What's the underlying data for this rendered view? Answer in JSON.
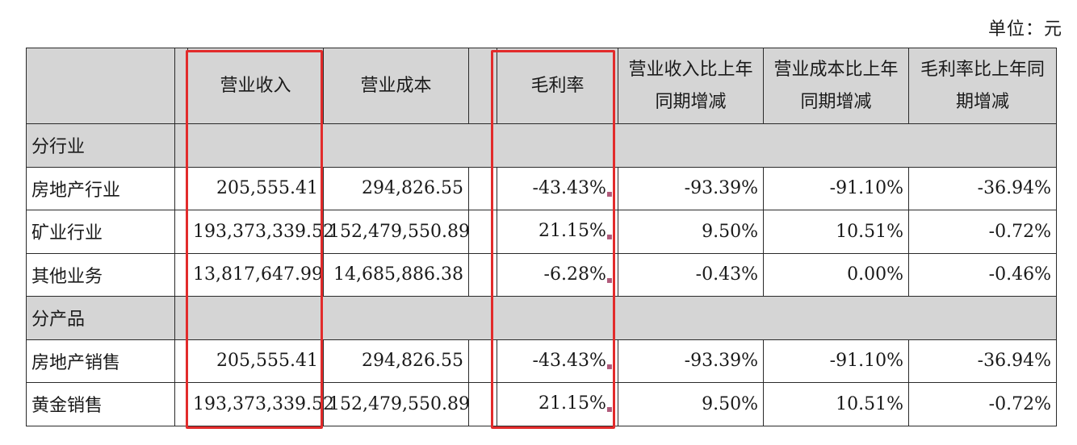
{
  "unit_label": "单位：元",
  "headers": [
    "",
    "营业收入",
    "营业成本",
    "毛利率",
    "营业收入比上年同期增减",
    "营业成本比上年同期增减",
    "毛利率比上年同期增减"
  ],
  "sections": [
    {
      "title": "分行业",
      "rows": [
        {
          "label": "房地产行业",
          "revenue": "205,555.41",
          "cost": "294,826.55",
          "margin": "-43.43%",
          "rev_change": "-93.39%",
          "cost_change": "-91.10%",
          "margin_change": "-36.94%"
        },
        {
          "label": "矿业行业",
          "revenue": "193,373,339.52",
          "cost": "152,479,550.89",
          "margin": "21.15%",
          "rev_change": "9.50%",
          "cost_change": "10.51%",
          "margin_change": "-0.72%"
        },
        {
          "label": "其他业务",
          "revenue": "13,817,647.99",
          "cost": "14,685,886.38",
          "margin": "-6.28%",
          "rev_change": "-0.43%",
          "cost_change": "0.00%",
          "margin_change": "-0.46%"
        }
      ]
    },
    {
      "title": "分产品",
      "rows": [
        {
          "label": "房地产销售",
          "revenue": "205,555.41",
          "cost": "294,826.55",
          "margin": "-43.43%",
          "rev_change": "-93.39%",
          "cost_change": "-91.10%",
          "margin_change": "-36.94%"
        },
        {
          "label": "黄金销售",
          "revenue": "193,373,339.52",
          "cost": "152,479,550.89",
          "margin": "21.15%",
          "rev_change": "9.50%",
          "cost_change": "10.51%",
          "margin_change": "-0.72%"
        }
      ]
    }
  ],
  "highlight_color": "#e22b2b"
}
